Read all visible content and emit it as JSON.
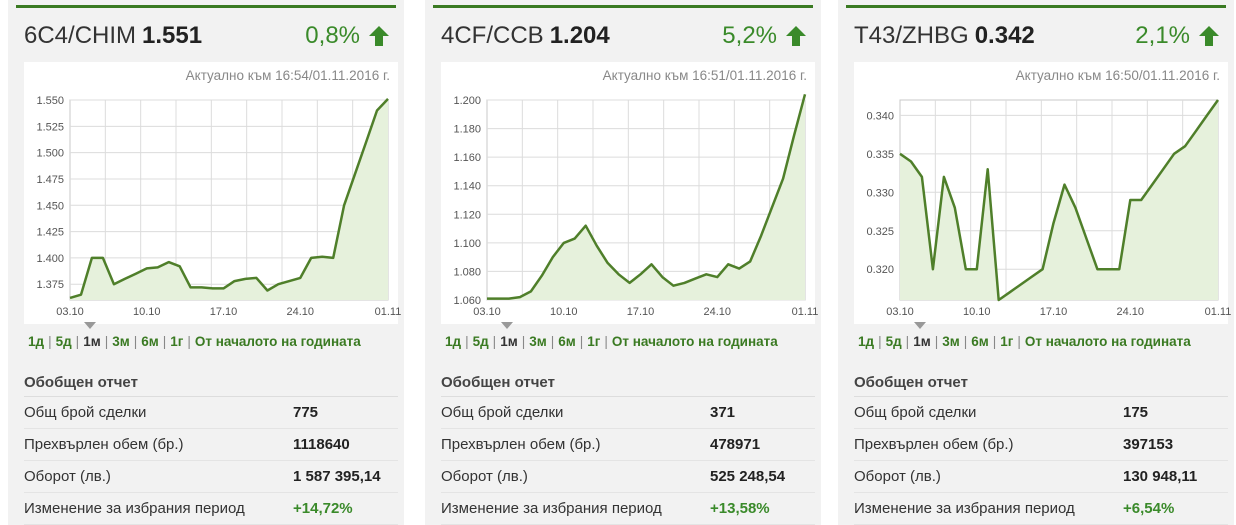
{
  "colors": {
    "accent": "#3a7a22",
    "positive": "#3a8a2a",
    "area": "#e6f1dc"
  },
  "cards": [
    {
      "symbol": "6C4/CHIM",
      "price": "1.551",
      "change": "0,8%",
      "updated": "Актуално към 16:54/01.11.2016 г.",
      "periods": [
        "1д",
        "5д",
        "1м",
        "3м",
        "6м",
        "1г",
        "От началото на годината"
      ],
      "active_period": "1м",
      "summary_title": "Обобщен отчет",
      "stats": [
        {
          "label": "Общ брой сделки",
          "value": "775"
        },
        {
          "label": "Прехвърлен обем (бр.)",
          "value": "1118640"
        },
        {
          "label": "Оборот (лв.)",
          "value": "1 587 395,14"
        },
        {
          "label": "Изменение за избрания период",
          "value": "+14,72%"
        }
      ],
      "chart_data": {
        "type": "area",
        "x_ticks": [
          "03.10",
          "10.10",
          "17.10",
          "24.10",
          "01.11"
        ],
        "y_ticks": [
          "1.550",
          "1.525",
          "1.500",
          "1.475",
          "1.450",
          "1.425",
          "1.400",
          "1.375"
        ],
        "ylim": [
          1.36,
          1.55
        ],
        "x": [
          0,
          1,
          2,
          3,
          4,
          5,
          6,
          7,
          8,
          9,
          10,
          11,
          12,
          13,
          14,
          15,
          16,
          17,
          18,
          19,
          20,
          21,
          22,
          23,
          24,
          25,
          26,
          27,
          28,
          29
        ],
        "y": [
          1.362,
          1.365,
          1.4,
          1.4,
          1.375,
          1.38,
          1.385,
          1.39,
          1.391,
          1.396,
          1.392,
          1.372,
          1.372,
          1.371,
          1.371,
          1.378,
          1.38,
          1.381,
          1.369,
          1.375,
          1.378,
          1.381,
          1.4,
          1.401,
          1.4,
          1.45,
          1.48,
          1.51,
          1.54,
          1.551
        ]
      }
    },
    {
      "symbol": "4CF/CCB",
      "price": "1.204",
      "change": "5,2%",
      "updated": "Актуално към 16:51/01.11.2016 г.",
      "periods": [
        "1д",
        "5д",
        "1м",
        "3м",
        "6м",
        "1г",
        "От началото на годината"
      ],
      "active_period": "1м",
      "summary_title": "Обобщен отчет",
      "stats": [
        {
          "label": "Общ брой сделки",
          "value": "371"
        },
        {
          "label": "Прехвърлен обем (бр.)",
          "value": "478971"
        },
        {
          "label": "Оборот (лв.)",
          "value": "525 248,54"
        },
        {
          "label": "Изменение за избрания период",
          "value": "+13,58%"
        }
      ],
      "chart_data": {
        "type": "area",
        "x_ticks": [
          "03.10",
          "10.10",
          "17.10",
          "24.10",
          "01.11"
        ],
        "y_ticks": [
          "1.200",
          "1.180",
          "1.160",
          "1.140",
          "1.120",
          "1.100",
          "1.080",
          "1.060"
        ],
        "ylim": [
          1.06,
          1.2
        ],
        "x": [
          0,
          1,
          2,
          3,
          4,
          5,
          6,
          7,
          8,
          9,
          10,
          11,
          12,
          13,
          14,
          15,
          16,
          17,
          18,
          19,
          20,
          21,
          22,
          23,
          24,
          25,
          26,
          27,
          28,
          29
        ],
        "y": [
          1.061,
          1.061,
          1.061,
          1.062,
          1.066,
          1.077,
          1.09,
          1.1,
          1.103,
          1.112,
          1.098,
          1.086,
          1.078,
          1.072,
          1.078,
          1.085,
          1.076,
          1.07,
          1.072,
          1.075,
          1.078,
          1.076,
          1.085,
          1.082,
          1.087,
          1.105,
          1.125,
          1.145,
          1.175,
          1.204
        ]
      }
    },
    {
      "symbol": "T43/ZHBG",
      "price": "0.342",
      "change": "2,1%",
      "updated": "Актуално към 16:50/01.11.2016 г.",
      "periods": [
        "1д",
        "5д",
        "1м",
        "3м",
        "6м",
        "1г",
        "От началото на годината"
      ],
      "active_period": "1м",
      "summary_title": "Обобщен отчет",
      "stats": [
        {
          "label": "Общ брой сделки",
          "value": "175"
        },
        {
          "label": "Прехвърлен обем (бр.)",
          "value": "397153"
        },
        {
          "label": "Оборот (лв.)",
          "value": "130 948,11"
        },
        {
          "label": "Изменение за избрания период",
          "value": "+6,54%"
        }
      ],
      "chart_data": {
        "type": "area",
        "x_ticks": [
          "03.10",
          "10.10",
          "17.10",
          "24.10",
          "01.11"
        ],
        "y_ticks": [
          "0.340",
          "0.335",
          "0.330",
          "0.325",
          "0.320"
        ],
        "ylim": [
          0.316,
          0.342
        ],
        "x": [
          0,
          1,
          2,
          3,
          4,
          5,
          6,
          7,
          8,
          9,
          10,
          11,
          12,
          13,
          14,
          15,
          16,
          17,
          18,
          19,
          20,
          21,
          22,
          23,
          24,
          25,
          26,
          27,
          28,
          29
        ],
        "y": [
          0.335,
          0.334,
          0.332,
          0.32,
          0.332,
          0.328,
          0.32,
          0.32,
          0.333,
          0.316,
          0.317,
          0.318,
          0.319,
          0.32,
          0.326,
          0.331,
          0.328,
          0.324,
          0.32,
          0.32,
          0.32,
          0.329,
          0.329,
          0.331,
          0.333,
          0.335,
          0.336,
          0.338,
          0.34,
          0.342
        ]
      }
    }
  ]
}
